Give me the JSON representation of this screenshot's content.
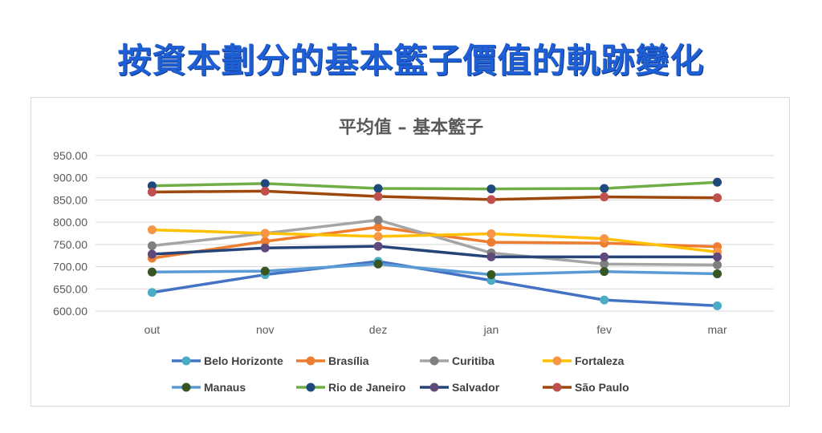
{
  "page": {
    "title": "按資本劃分的基本籃子價值的軌跡變化"
  },
  "chart_data": {
    "type": "line",
    "title": "平均值 – 基本籃子",
    "xlabel": "",
    "ylabel": "",
    "categories": [
      "out",
      "nov",
      "dez",
      "jan",
      "fev",
      "mar"
    ],
    "ylim": [
      600,
      950
    ],
    "yticks": [
      "950.00",
      "900.00",
      "850.00",
      "800.00",
      "750.00",
      "700.00",
      "650.00",
      "600.00"
    ],
    "grid": true,
    "legend_position": "bottom",
    "series": [
      {
        "name": "Belo Horizonte",
        "color": "#4472c4",
        "marker": "#4bacc6",
        "values": [
          642,
          682,
          712,
          669,
          625,
          612
        ]
      },
      {
        "name": "Brasília",
        "color": "#ed7d31",
        "marker": "#ed7d31",
        "values": [
          719,
          757,
          789,
          755,
          753,
          745
        ]
      },
      {
        "name": "Curitiba",
        "color": "#a5a5a5",
        "marker": "#7f7f7f",
        "values": [
          747,
          775,
          805,
          731,
          706,
          704
        ]
      },
      {
        "name": "Fortaleza",
        "color": "#ffc000",
        "marker": "#f79646",
        "values": [
          783,
          775,
          768,
          774,
          763,
          733
        ]
      },
      {
        "name": "Manaus",
        "color": "#5b9bd5",
        "marker": "#375623",
        "values": [
          688,
          690,
          706,
          682,
          689,
          684
        ]
      },
      {
        "name": "Rio de Janeiro",
        "color": "#70ad47",
        "marker": "#1f497d",
        "values": [
          882,
          887,
          876,
          875,
          876,
          890
        ]
      },
      {
        "name": "Salvador",
        "color": "#264478",
        "marker": "#604a7b",
        "values": [
          728,
          742,
          746,
          722,
          722,
          722
        ]
      },
      {
        "name": "São Paulo",
        "color": "#9e480e",
        "marker": "#c0504d",
        "values": [
          868,
          870,
          858,
          851,
          857,
          855
        ]
      }
    ]
  }
}
